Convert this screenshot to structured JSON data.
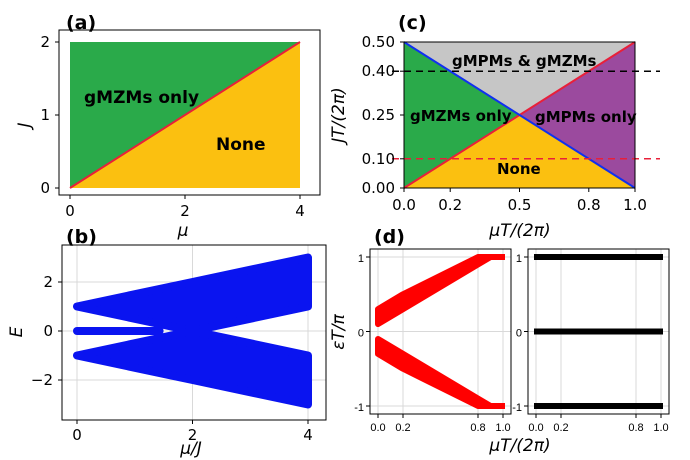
{
  "chart_data": [
    {
      "panel": "(a)",
      "type": "area",
      "xlabel": "μ",
      "ylabel": "J",
      "xlim": [
        0,
        4
      ],
      "ylim": [
        0,
        2
      ],
      "xticks": [
        "0",
        "2",
        "4"
      ],
      "yticks": [
        "0",
        "1",
        "2"
      ],
      "regions": [
        {
          "name": "gMZMs only",
          "color": "#2aaa4a",
          "polygon": [
            [
              0,
              0
            ],
            [
              0,
              2
            ],
            [
              4,
              2
            ]
          ]
        },
        {
          "name": "None",
          "color": "#fbc010",
          "polygon": [
            [
              0,
              0
            ],
            [
              4,
              0
            ],
            [
              4,
              2
            ]
          ]
        }
      ],
      "boundary": {
        "color": "#e8203a",
        "points": [
          [
            0,
            0
          ],
          [
            4,
            2
          ]
        ]
      }
    },
    {
      "panel": "(b)",
      "type": "area",
      "xlabel": "μ/J",
      "ylabel": "E",
      "xlim": [
        0,
        4
      ],
      "ylim": [
        -3,
        3
      ],
      "xticks": [
        "0",
        "2",
        "4"
      ],
      "yticks": [
        "−2",
        "0",
        "2"
      ],
      "color": "#0a14f0",
      "bands": [
        {
          "name": "upper",
          "x": [
            0,
            2,
            4
          ],
          "lower": [
            1,
            0,
            1
          ],
          "upper": [
            1,
            2,
            3
          ]
        },
        {
          "name": "lower",
          "x": [
            0,
            2,
            4
          ],
          "lower": [
            -1,
            -2,
            -3
          ],
          "upper": [
            -1,
            0,
            -1
          ]
        }
      ],
      "zero_mode": {
        "x": [
          0,
          1.5
        ],
        "value": 0
      }
    },
    {
      "panel": "(c)",
      "type": "area",
      "xlabel": "μT/(2π)",
      "ylabel": "JT/(2π)",
      "xlim": [
        0,
        1
      ],
      "ylim": [
        0,
        0.5
      ],
      "xticks": [
        "0.0",
        "0.2",
        "0.5",
        "0.8",
        "1.0"
      ],
      "yticks": [
        "0.00",
        "0.10",
        "0.25",
        "0.40",
        "0.50"
      ],
      "regions": [
        {
          "name": "gMPMs & gMZMs",
          "color": "#c6c6c6",
          "polygon": [
            [
              0,
              0.5
            ],
            [
              1,
              0.5
            ],
            [
              0.5,
              0.25
            ]
          ]
        },
        {
          "name": "gMZMs only",
          "color": "#2aaa4a",
          "polygon": [
            [
              0,
              0
            ],
            [
              0,
              0.5
            ],
            [
              0.5,
              0.25
            ]
          ]
        },
        {
          "name": "gMPMs only",
          "color": "#9b4a9e",
          "polygon": [
            [
              1,
              0
            ],
            [
              1,
              0.5
            ],
            [
              0.5,
              0.25
            ]
          ]
        },
        {
          "name": "None",
          "color": "#fbc010",
          "polygon": [
            [
              0,
              0
            ],
            [
              1,
              0
            ],
            [
              0.5,
              0.25
            ]
          ]
        }
      ],
      "boundaries": [
        {
          "color": "#e8203a",
          "points": [
            [
              0,
              0
            ],
            [
              1,
              0.5
            ]
          ]
        },
        {
          "color": "#1030f0",
          "points": [
            [
              0,
              0.5
            ],
            [
              1,
              0
            ]
          ]
        }
      ],
      "reference_lines": [
        {
          "y": 0.4,
          "color": "#000000",
          "style": "dashed"
        },
        {
          "y": 0.1,
          "color": "#e8203a",
          "style": "dashed"
        }
      ]
    },
    {
      "panel": "(d)",
      "type": "area",
      "xlabel": "μT/(2π)",
      "ylabel": "εT/π",
      "subplots": [
        {
          "color": "#ff0000",
          "xlim": [
            0,
            1
          ],
          "ylim": [
            -1,
            1
          ],
          "xticks": [
            "0.0",
            "0.2",
            "0.8",
            "1.0"
          ],
          "yticks": [
            "-1",
            "0",
            "1"
          ],
          "bands": [
            {
              "x": [
                0,
                0.2,
                0.8,
                0.9
              ],
              "lower": [
                0.1,
                0.3,
                0.9,
                1.0
              ],
              "upper": [
                0.3,
                0.5,
                1.0,
                1.0
              ]
            },
            {
              "x": [
                0,
                0.2,
                0.8,
                0.9
              ],
              "lower": [
                -0.3,
                -0.5,
                -1.0,
                -1.0
              ],
              "upper": [
                -0.1,
                -0.3,
                -0.9,
                -1.0
              ]
            }
          ],
          "flat_modes": [
            {
              "x": [
                0.9,
                1.0
              ],
              "value": 1
            },
            {
              "x": [
                0.9,
                1.0
              ],
              "value": -1
            }
          ]
        },
        {
          "color": "#000000",
          "xlim": [
            0,
            1
          ],
          "ylim": [
            -1,
            1
          ],
          "xticks": [
            "0.0",
            "0.2",
            "0.8",
            "1.0"
          ],
          "yticks": [
            "-1",
            "0",
            "1"
          ],
          "flat_modes": [
            {
              "x": [
                0,
                1
              ],
              "value": 1
            },
            {
              "x": [
                0,
                1
              ],
              "value": 0
            },
            {
              "x": [
                0,
                1
              ],
              "value": -1
            }
          ]
        }
      ]
    }
  ]
}
